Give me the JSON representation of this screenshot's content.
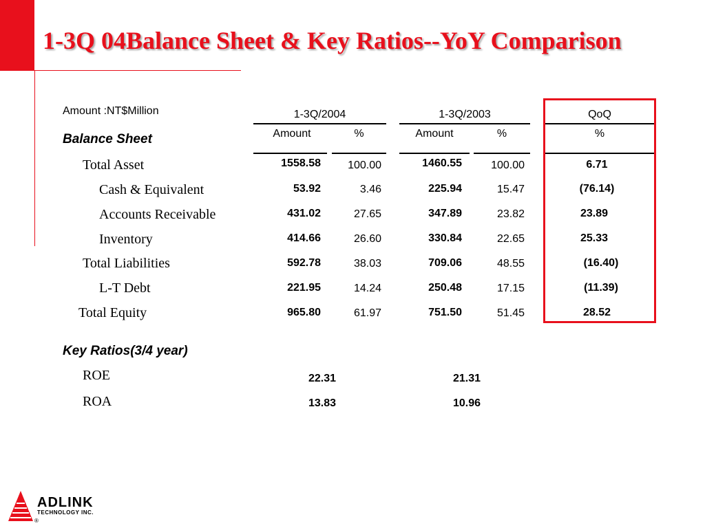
{
  "title": "1-3Q 04Balance Sheet & Key Ratios--YoY Comparison",
  "units": "Amount :NT$Million",
  "balance_sheet_heading": "Balance Sheet",
  "periods": {
    "p2004": "1-3Q/2004",
    "p2003": "1-3Q/2003",
    "qoq": "QoQ"
  },
  "subheads": {
    "amount": "Amount",
    "pct": "%"
  },
  "rows": [
    {
      "label": "Total Asset",
      "a2004": "1558.58",
      "p2004": "100.00",
      "a2003": "1460.55",
      "p2003": "100.00",
      "qoq": "6.71"
    },
    {
      "label": "Cash & Equivalent",
      "a2004": "53.92",
      "p2004": "3.46",
      "a2003": "225.94",
      "p2003": "15.47",
      "qoq": "(76.14)"
    },
    {
      "label": "Accounts Receivable",
      "a2004": "431.02",
      "p2004": "27.65",
      "a2003": "347.89",
      "p2003": "23.82",
      "qoq": "23.89"
    },
    {
      "label": "Inventory",
      "a2004": "414.66",
      "p2004": "26.60",
      "a2003": "330.84",
      "p2003": "22.65",
      "qoq": "25.33"
    },
    {
      "label": "Total Liabilities",
      "a2004": "592.78",
      "p2004": "38.03",
      "a2003": "709.06",
      "p2003": "48.55",
      "qoq": "(16.40)"
    },
    {
      "label": "L-T Debt",
      "a2004": "221.95",
      "p2004": "14.24",
      "a2003": "250.48",
      "p2003": "17.15",
      "qoq": "(11.39)"
    },
    {
      "label": "Total Equity",
      "a2004": "965.80",
      "p2004": "61.97",
      "a2003": "751.50",
      "p2003": "51.45",
      "qoq": "28.52"
    }
  ],
  "key_ratios_heading": "Key Ratios(3/4 year)",
  "ratios": [
    {
      "label": "ROE",
      "v2004": "22.31",
      "v2003": "21.31"
    },
    {
      "label": "ROA",
      "v2004": "13.83",
      "v2003": "10.96"
    }
  ],
  "logo": {
    "name": "ADLINK",
    "tagline": "TECHNOLOGY INC.",
    "registered": "®"
  },
  "colors": {
    "accent": "#e8101c"
  }
}
